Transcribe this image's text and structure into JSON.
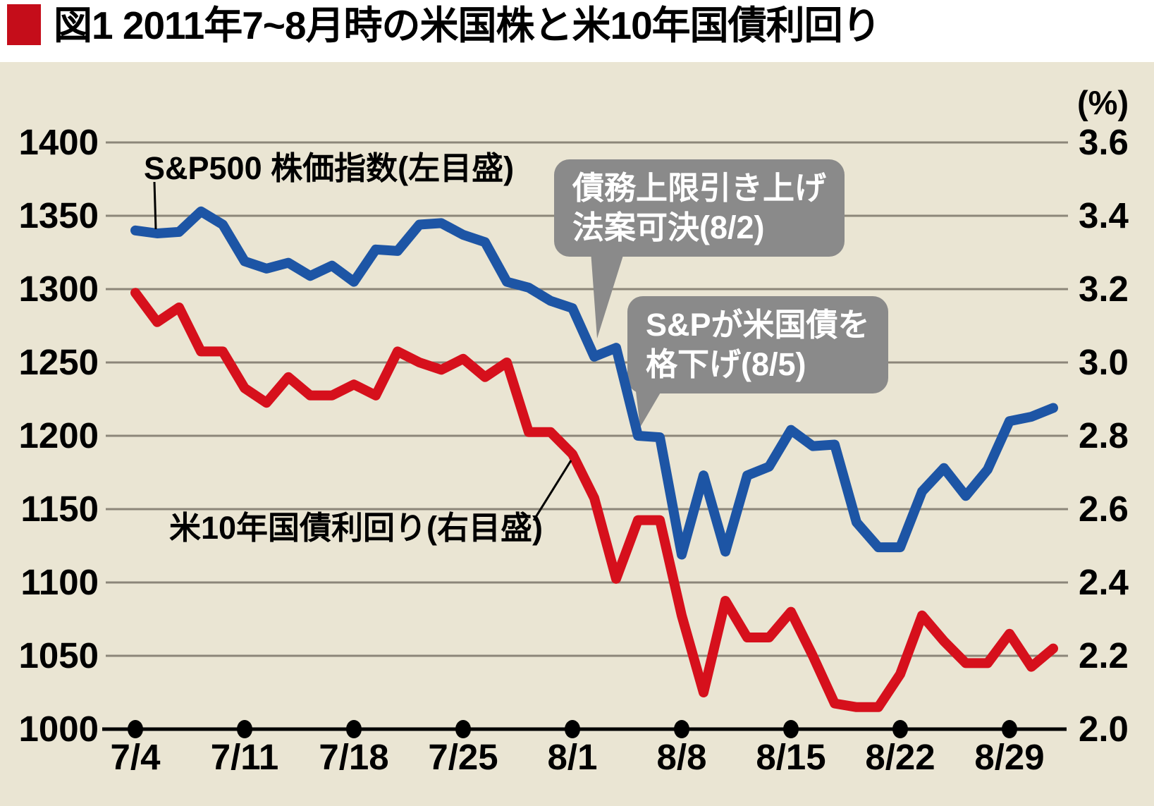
{
  "title": "図1 2011年7~8月時の米国株と米10年国債利回り",
  "colors": {
    "title_marker": "#c50d1a",
    "background_panel": "#eae5d3",
    "sp500_line": "#1d55a5",
    "yield_line": "#d6101c",
    "gridline": "#8c8679",
    "axis": "#000000",
    "annotation_box": "#8a8a8a",
    "annotation_text": "#ffffff"
  },
  "chart_data": {
    "type": "line",
    "title": "図1 2011年7~8月時の米国株と米10年国債利回り",
    "grid": true,
    "categories": [
      "7/4",
      "7/5",
      "7/6",
      "7/7",
      "7/8",
      "7/11",
      "7/12",
      "7/13",
      "7/14",
      "7/15",
      "7/18",
      "7/19",
      "7/20",
      "7/21",
      "7/22",
      "7/25",
      "7/26",
      "7/27",
      "7/28",
      "7/29",
      "8/1",
      "8/2",
      "8/3",
      "8/4",
      "8/5",
      "8/8",
      "8/9",
      "8/10",
      "8/11",
      "8/12",
      "8/15",
      "8/16",
      "8/17",
      "8/18",
      "8/19",
      "8/22",
      "8/23",
      "8/24",
      "8/25",
      "8/26",
      "8/29",
      "8/30",
      "8/31"
    ],
    "x_axis": {
      "tick_labels": [
        "7/4",
        "7/11",
        "7/18",
        "7/25",
        "8/1",
        "8/8",
        "8/15",
        "8/22",
        "8/29"
      ]
    },
    "left_axis": {
      "min": 1000,
      "max": 1400,
      "ticks": [
        "1400",
        "1350",
        "1300",
        "1250",
        "1200",
        "1150",
        "1100",
        "1050",
        "1000"
      ]
    },
    "right_axis": {
      "unit": "(%)",
      "min": 2.0,
      "max": 3.6,
      "ticks": [
        "3.6",
        "3.4",
        "3.2",
        "3.0",
        "2.8",
        "2.6",
        "2.4",
        "2.2",
        "2.0"
      ]
    },
    "series": [
      {
        "name": "sp500",
        "label": "S&P500 株価指数(左目盛)",
        "axis": "left",
        "color": "#1d55a5",
        "values": [
          1340,
          1338,
          1339,
          1353,
          1344,
          1319,
          1314,
          1318,
          1309,
          1316,
          1305,
          1327,
          1326,
          1344,
          1345,
          1337,
          1332,
          1305,
          1301,
          1292,
          1287,
          1254,
          1260,
          1200,
          1199,
          1119,
          1173,
          1121,
          1173,
          1179,
          1204,
          1193,
          1194,
          1141,
          1124,
          1124,
          1162,
          1178,
          1159,
          1177,
          1210,
          1213,
          1219
        ]
      },
      {
        "name": "us10y-yield",
        "label": "米10年国債利回り(右目盛)",
        "axis": "right",
        "color": "#d6101c",
        "values": [
          3.19,
          3.11,
          3.15,
          3.03,
          3.03,
          2.93,
          2.89,
          2.96,
          2.91,
          2.91,
          2.94,
          2.91,
          3.03,
          3.0,
          2.98,
          3.01,
          2.96,
          3.0,
          2.81,
          2.81,
          2.75,
          2.63,
          2.41,
          2.57,
          2.57,
          2.31,
          2.1,
          2.35,
          2.25,
          2.25,
          2.32,
          2.2,
          2.07,
          2.06,
          2.06,
          2.15,
          2.31,
          2.24,
          2.18,
          2.18,
          2.26,
          2.17,
          2.22
        ]
      }
    ],
    "annotations": [
      {
        "lines": [
          "債務上限引き上げ",
          "法案可決(8/2)"
        ]
      },
      {
        "lines": [
          "S&Pが米国債を",
          "格下げ(8/5)"
        ]
      }
    ]
  }
}
